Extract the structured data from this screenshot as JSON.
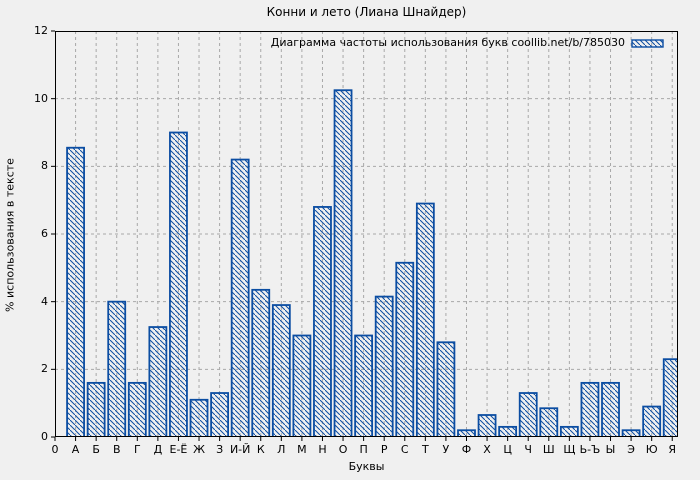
{
  "page": {
    "background_color": "#f0f0f0",
    "title": "Конни и лето (Лиана Шнайдер)"
  },
  "chart_data": {
    "type": "bar",
    "title": "Конни и лето (Лиана Шнайдер)",
    "legend": {
      "label": "Диаграмма частоты использования букв coollib.net/b/785030",
      "position": "top-right-inside",
      "swatch": "hatched-box"
    },
    "xlabel": "Буквы",
    "ylabel": "% использования в тексте",
    "origin_tick_label": "0",
    "categories": [
      "А",
      "Б",
      "В",
      "Г",
      "Д",
      "Е-Ё",
      "Ж",
      "З",
      "И-Й",
      "К",
      "Л",
      "М",
      "Н",
      "О",
      "П",
      "Р",
      "С",
      "Т",
      "У",
      "Ф",
      "Х",
      "Ц",
      "Ч",
      "Ш",
      "Щ",
      "Ь-Ъ",
      "Ы",
      "Э",
      "Ю",
      "Я"
    ],
    "values": [
      8.55,
      1.6,
      4.0,
      1.6,
      3.25,
      9.0,
      1.1,
      1.3,
      8.2,
      4.35,
      3.9,
      3.0,
      6.8,
      10.25,
      3.0,
      4.15,
      5.15,
      6.9,
      2.8,
      0.2,
      0.65,
      0.3,
      1.3,
      0.85,
      0.3,
      1.6,
      1.6,
      0.2,
      0.9,
      2.3
    ],
    "yticks": [
      0,
      2,
      4,
      6,
      8,
      10,
      12
    ],
    "ylim": [
      0,
      12
    ],
    "grid": true,
    "grid_style": "dashed",
    "bar_fill": "diagonal-hatch",
    "colors": {
      "bar": "#0b4da2",
      "grid": "#a8a8a8",
      "axis": "#000000",
      "background": "#f0f0f0"
    }
  }
}
